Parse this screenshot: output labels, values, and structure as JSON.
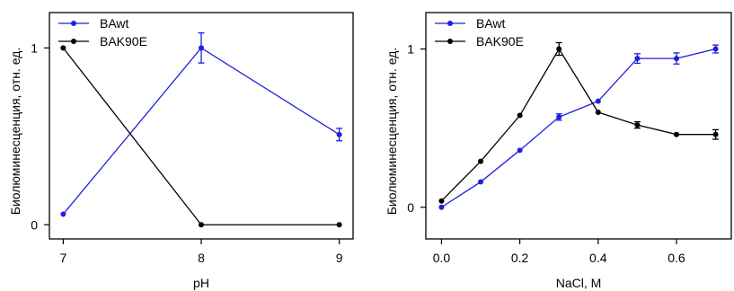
{
  "chart_data": [
    {
      "type": "line",
      "xlabel": "pH",
      "ylabel": "Биолюминесценция, отн. ед.",
      "x": [
        7,
        8,
        9
      ],
      "xlim": [
        6.9,
        9.1
      ],
      "ylim": [
        -0.08,
        1.2
      ],
      "xticks": [
        "7",
        "8",
        "9"
      ],
      "yticks": [
        "0",
        "1"
      ],
      "legend": "top-left",
      "grid": false,
      "series": [
        {
          "name": "BAwt",
          "color": "#1f1fe0",
          "values": [
            0.06,
            1.0,
            0.51
          ],
          "errors": [
            0,
            0.085,
            0.035
          ]
        },
        {
          "name": "BAK90E",
          "color": "#000000",
          "values": [
            1.0,
            0.0,
            0.0
          ],
          "errors": [
            0,
            0,
            0
          ]
        }
      ]
    },
    {
      "type": "line",
      "xlabel": "NaCl, M",
      "ylabel": "Биолюминесценция, отн. ед.",
      "x": [
        0.0,
        0.1,
        0.2,
        0.3,
        0.4,
        0.5,
        0.6,
        0.7
      ],
      "xlim": [
        -0.04,
        0.74
      ],
      "ylim": [
        -0.2,
        1.23
      ],
      "xticks": [
        "0.0",
        "0.2",
        "0.4",
        "0.6"
      ],
      "yticks": [
        "0",
        "1"
      ],
      "legend": "top-left",
      "grid": false,
      "series": [
        {
          "name": "BAwt",
          "color": "#1f1fe0",
          "values": [
            0.0,
            0.16,
            0.36,
            0.57,
            0.67,
            0.94,
            0.94,
            1.0
          ],
          "errors": [
            0,
            0,
            0,
            0.02,
            0,
            0.03,
            0.035,
            0.025
          ]
        },
        {
          "name": "BAK90E",
          "color": "#000000",
          "values": [
            0.04,
            0.29,
            0.58,
            1.0,
            0.6,
            0.52,
            0.46,
            0.46
          ],
          "errors": [
            0,
            0,
            0,
            0.04,
            0,
            0.02,
            0,
            0.03
          ]
        }
      ]
    }
  ]
}
